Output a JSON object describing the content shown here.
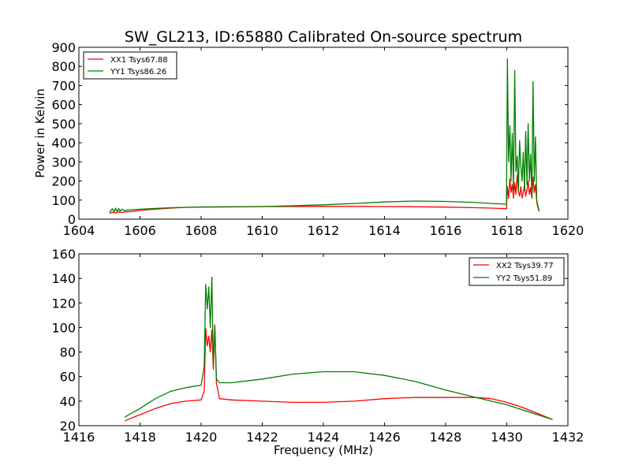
{
  "chart_data": [
    {
      "type": "line",
      "title": "SW_GL213, ID:65880 Calibrated On-source spectrum",
      "xlabel": "",
      "ylabel": "Power in Kelvin",
      "xlim": [
        1604,
        1620
      ],
      "ylim": [
        0,
        900
      ],
      "xticks": [
        1604,
        1606,
        1608,
        1610,
        1612,
        1614,
        1616,
        1618,
        1620
      ],
      "yticks": [
        0,
        100,
        200,
        300,
        400,
        500,
        600,
        700,
        800,
        900
      ],
      "grid": false,
      "legend_position": "top-left",
      "series": [
        {
          "name": "XX1 Tsys67.88",
          "color": "#ff0000",
          "x": [
            1605.0,
            1605.1,
            1605.2,
            1605.3,
            1605.4,
            1605.5,
            1605.7,
            1606.0,
            1606.5,
            1607.0,
            1607.5,
            1608.0,
            1609.0,
            1610.0,
            1611.0,
            1612.0,
            1613.0,
            1614.0,
            1615.0,
            1616.0,
            1617.0,
            1617.5,
            1617.99,
            1618.02,
            1618.06,
            1618.1,
            1618.14,
            1618.18,
            1618.22,
            1618.26,
            1618.3,
            1618.34,
            1618.38,
            1618.42,
            1618.46,
            1618.5,
            1618.54,
            1618.58,
            1618.62,
            1618.66,
            1618.7,
            1618.74,
            1618.78,
            1618.82,
            1618.86,
            1618.9,
            1618.94,
            1618.98,
            1619.02,
            1619.06
          ],
          "y": [
            30,
            36,
            33,
            38,
            35,
            38,
            40,
            46,
            52,
            58,
            62,
            64,
            65,
            66,
            66,
            67,
            67,
            66,
            65,
            63,
            60,
            58,
            55,
            170,
            110,
            210,
            140,
            180,
            110,
            190,
            130,
            230,
            150,
            120,
            170,
            110,
            140,
            175,
            120,
            150,
            200,
            130,
            165,
            110,
            220,
            140,
            180,
            90,
            60,
            40
          ]
        },
        {
          "name": "YY1 Tsys86.26",
          "color": "#008000",
          "x": [
            1605.0,
            1605.1,
            1605.15,
            1605.2,
            1605.25,
            1605.3,
            1605.35,
            1605.4,
            1605.5,
            1605.6,
            1605.8,
            1606.0,
            1606.5,
            1607.0,
            1607.5,
            1608.0,
            1609.0,
            1610.0,
            1611.0,
            1612.0,
            1613.0,
            1614.0,
            1615.0,
            1616.0,
            1617.0,
            1617.5,
            1617.99,
            1618.02,
            1618.06,
            1618.1,
            1618.14,
            1618.18,
            1618.22,
            1618.26,
            1618.3,
            1618.34,
            1618.38,
            1618.42,
            1618.46,
            1618.5,
            1618.54,
            1618.58,
            1618.62,
            1618.66,
            1618.7,
            1618.74,
            1618.78,
            1618.82,
            1618.86,
            1618.9,
            1618.94,
            1618.98,
            1619.02,
            1619.06
          ],
          "y": [
            35,
            55,
            38,
            58,
            40,
            56,
            42,
            52,
            45,
            48,
            50,
            52,
            56,
            60,
            62,
            63,
            64,
            66,
            70,
            75,
            82,
            90,
            95,
            93,
            87,
            82,
            78,
            840,
            300,
            490,
            200,
            450,
            150,
            780,
            250,
            330,
            150,
            410,
            280,
            200,
            350,
            150,
            460,
            180,
            500,
            200,
            340,
            120,
            720,
            200,
            430,
            100,
            70,
            40
          ]
        }
      ]
    },
    {
      "type": "line",
      "title": "",
      "xlabel": "Frequency (MHz)",
      "ylabel": "",
      "xlim": [
        1416,
        1432
      ],
      "ylim": [
        20,
        160
      ],
      "xticks": [
        1416,
        1418,
        1420,
        1422,
        1424,
        1426,
        1428,
        1430,
        1432
      ],
      "yticks": [
        20,
        40,
        60,
        80,
        100,
        120,
        140,
        160
      ],
      "grid": false,
      "legend_position": "top-right",
      "series": [
        {
          "name": "XX2 Tsys39.77",
          "color": "#ff0000",
          "x": [
            1417.5,
            1418.0,
            1418.5,
            1419.0,
            1419.5,
            1420.0,
            1420.1,
            1420.15,
            1420.2,
            1420.25,
            1420.3,
            1420.35,
            1420.4,
            1420.45,
            1420.5,
            1420.6,
            1421.0,
            1422.0,
            1423.0,
            1424.0,
            1425.0,
            1426.0,
            1427.0,
            1428.0,
            1429.0,
            1429.5,
            1430.0,
            1430.5,
            1431.0,
            1431.5
          ],
          "y": [
            24,
            29,
            34,
            38,
            40,
            41,
            48,
            99,
            85,
            93,
            80,
            98,
            66,
            102,
            55,
            42,
            41,
            40,
            39,
            39,
            40,
            42,
            43,
            43,
            43,
            42,
            39,
            35,
            30,
            25
          ]
        },
        {
          "name": "YY2 Tsys51.89",
          "color": "#008000",
          "x": [
            1417.5,
            1418.0,
            1418.5,
            1419.0,
            1419.5,
            1420.0,
            1420.1,
            1420.15,
            1420.2,
            1420.25,
            1420.3,
            1420.35,
            1420.4,
            1420.45,
            1420.5,
            1420.6,
            1421.0,
            1422.0,
            1423.0,
            1424.0,
            1425.0,
            1426.0,
            1427.0,
            1428.0,
            1429.0,
            1429.5,
            1430.0,
            1430.5,
            1431.0,
            1431.5
          ],
          "y": [
            27,
            34,
            42,
            48,
            51,
            53,
            68,
            135,
            115,
            133,
            100,
            141,
            70,
            100,
            58,
            55,
            55,
            58,
            62,
            64,
            64,
            61,
            56,
            49,
            43,
            40,
            37,
            33,
            29,
            25
          ]
        }
      ]
    }
  ]
}
